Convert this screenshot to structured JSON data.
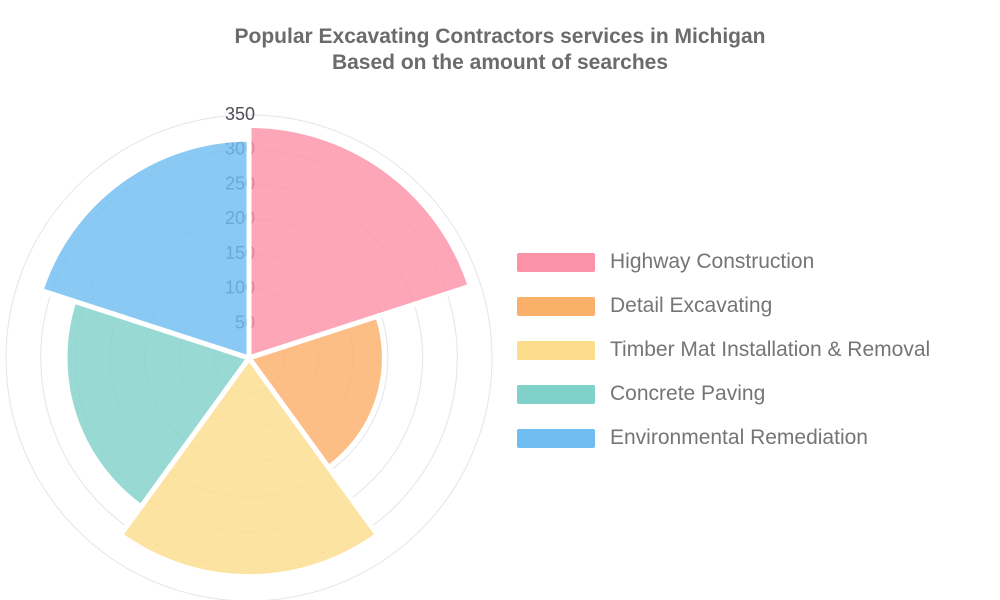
{
  "title": {
    "line1": "Popular Excavating Contractors services in Michigan",
    "line2": "Based on the amount of searches"
  },
  "chart_data": {
    "type": "polar_area",
    "title": "Popular Excavating Contractors services in Michigan",
    "subtitle": "Based on the amount of searches",
    "categories": [
      "Highway Construction",
      "Detail Excavating",
      "Timber Mat Installation & Removal",
      "Concrete Paving",
      "Environmental Remediation"
    ],
    "values": [
      335,
      195,
      315,
      265,
      315
    ],
    "colors": [
      "#fb92a8",
      "#fbb06a",
      "#fcdd8c",
      "#81d1cb",
      "#6fbdf0"
    ],
    "radial_ticks": [
      50,
      100,
      150,
      200,
      250,
      300,
      350
    ],
    "rlim": [
      0,
      350
    ],
    "sector_angle_deg": 72,
    "start_angle_deg": 0,
    "direction": "clockwise",
    "legend_position": "right",
    "grid": true,
    "style": {
      "title_color": "#6b6b6b",
      "legend_text_color": "#757575",
      "tick_label_color": "#4d4e54",
      "grid_color": "#e5e5e8",
      "sector_border_color": "#ffffff",
      "background": "#ffffff"
    }
  }
}
